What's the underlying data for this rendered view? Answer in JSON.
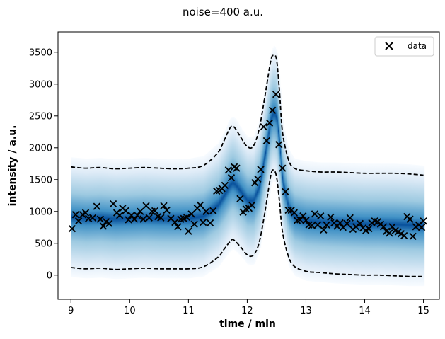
{
  "chart_data": {
    "type": "scatter",
    "title": "noise=400 a.u.",
    "xlabel": "time / min",
    "ylabel": "intensity / a.u.",
    "xlim": [
      8.78,
      15.27
    ],
    "ylim": [
      -380,
      3820
    ],
    "xticks": [
      9,
      10,
      11,
      12,
      13,
      14,
      15
    ],
    "yticks": [
      0,
      500,
      1000,
      1500,
      2000,
      2500,
      3000,
      3500
    ],
    "legend": {
      "position": "top-right",
      "entries": [
        "data"
      ]
    },
    "grid": false,
    "colors": {
      "data": "#000000",
      "band": "#08519c",
      "band_light": "#deebf7",
      "bounds": "#000000"
    },
    "series": [
      {
        "name": "data",
        "kind": "scatter",
        "marker": "x",
        "points": [
          [
            9.02,
            730
          ],
          [
            9.08,
            950
          ],
          [
            9.13,
            850
          ],
          [
            9.2,
            950
          ],
          [
            9.25,
            980
          ],
          [
            9.3,
            890
          ],
          [
            9.37,
            900
          ],
          [
            9.44,
            1080
          ],
          [
            9.5,
            880
          ],
          [
            9.55,
            770
          ],
          [
            9.6,
            840
          ],
          [
            9.65,
            810
          ],
          [
            9.72,
            1120
          ],
          [
            9.78,
            980
          ],
          [
            9.83,
            940
          ],
          [
            9.88,
            1050
          ],
          [
            9.93,
            1010
          ],
          [
            9.98,
            870
          ],
          [
            10.03,
            940
          ],
          [
            10.08,
            880
          ],
          [
            10.13,
            940
          ],
          [
            10.18,
            1000
          ],
          [
            10.23,
            880
          ],
          [
            10.28,
            1090
          ],
          [
            10.33,
            900
          ],
          [
            10.38,
            1000
          ],
          [
            10.43,
            1010
          ],
          [
            10.48,
            920
          ],
          [
            10.53,
            900
          ],
          [
            10.58,
            1090
          ],
          [
            10.63,
            1020
          ],
          [
            10.7,
            890
          ],
          [
            10.77,
            830
          ],
          [
            10.82,
            760
          ],
          [
            10.87,
            880
          ],
          [
            10.92,
            890
          ],
          [
            10.97,
            910
          ],
          [
            11.0,
            690
          ],
          [
            11.05,
            960
          ],
          [
            11.1,
            800
          ],
          [
            11.15,
            1050
          ],
          [
            11.2,
            1100
          ],
          [
            11.25,
            830
          ],
          [
            11.3,
            1000
          ],
          [
            11.37,
            820
          ],
          [
            11.42,
            1010
          ],
          [
            11.48,
            1320
          ],
          [
            11.53,
            1330
          ],
          [
            11.57,
            1360
          ],
          [
            11.62,
            1410
          ],
          [
            11.68,
            1650
          ],
          [
            11.73,
            1530
          ],
          [
            11.78,
            1700
          ],
          [
            11.82,
            1680
          ],
          [
            11.88,
            1200
          ],
          [
            11.93,
            990
          ],
          [
            11.98,
            1040
          ],
          [
            12.03,
            1050
          ],
          [
            12.08,
            1100
          ],
          [
            12.13,
            1450
          ],
          [
            12.18,
            1510
          ],
          [
            12.23,
            1660
          ],
          [
            12.28,
            2330
          ],
          [
            12.33,
            2110
          ],
          [
            12.38,
            2390
          ],
          [
            12.43,
            2590
          ],
          [
            12.49,
            2840
          ],
          [
            12.54,
            2050
          ],
          [
            12.6,
            1680
          ],
          [
            12.65,
            1310
          ],
          [
            12.7,
            1020
          ],
          [
            12.75,
            1020
          ],
          [
            12.8,
            980
          ],
          [
            12.85,
            860
          ],
          [
            12.9,
            870
          ],
          [
            12.95,
            930
          ],
          [
            13.0,
            860
          ],
          [
            13.05,
            790
          ],
          [
            13.1,
            780
          ],
          [
            13.15,
            960
          ],
          [
            13.2,
            790
          ],
          [
            13.25,
            930
          ],
          [
            13.3,
            710
          ],
          [
            13.35,
            790
          ],
          [
            13.42,
            910
          ],
          [
            13.48,
            820
          ],
          [
            13.53,
            770
          ],
          [
            13.58,
            820
          ],
          [
            13.63,
            750
          ],
          [
            13.7,
            810
          ],
          [
            13.75,
            900
          ],
          [
            13.8,
            720
          ],
          [
            13.85,
            760
          ],
          [
            13.92,
            810
          ],
          [
            13.97,
            740
          ],
          [
            14.02,
            700
          ],
          [
            14.07,
            730
          ],
          [
            14.12,
            820
          ],
          [
            14.17,
            850
          ],
          [
            14.22,
            840
          ],
          [
            14.27,
            800
          ],
          [
            14.32,
            760
          ],
          [
            14.37,
            690
          ],
          [
            14.42,
            660
          ],
          [
            14.47,
            760
          ],
          [
            14.52,
            700
          ],
          [
            14.57,
            680
          ],
          [
            14.62,
            650
          ],
          [
            14.67,
            620
          ],
          [
            14.72,
            920
          ],
          [
            14.77,
            880
          ],
          [
            14.82,
            610
          ],
          [
            14.87,
            760
          ],
          [
            14.92,
            790
          ],
          [
            14.97,
            750
          ],
          [
            15.0,
            850
          ]
        ]
      },
      {
        "kind": "band",
        "x": [
          9.0,
          9.25,
          9.5,
          9.75,
          10.0,
          10.25,
          10.5,
          10.75,
          11.0,
          11.25,
          11.5,
          11.6,
          11.7,
          11.75,
          11.8,
          11.9,
          12.0,
          12.1,
          12.2,
          12.3,
          12.4,
          12.45,
          12.5,
          12.55,
          12.6,
          12.7,
          12.8,
          13.0,
          13.25,
          13.5,
          13.75,
          14.0,
          14.25,
          14.5,
          14.75,
          15.0
        ],
        "median": [
          900,
          905,
          900,
          905,
          900,
          905,
          900,
          900,
          900,
          920,
          1000,
          1090,
          1160,
          1180,
          1150,
          1080,
          1000,
          1030,
          1250,
          1700,
          2200,
          2450,
          2400,
          2000,
          1500,
          1150,
          970,
          890,
          850,
          830,
          810,
          800,
          790,
          780,
          770,
          760
        ],
        "lower": [
          120,
          100,
          110,
          90,
          100,
          110,
          100,
          100,
          100,
          130,
          280,
          400,
          520,
          560,
          530,
          430,
          320,
          310,
          500,
          980,
          1560,
          1650,
          1540,
          1150,
          680,
          300,
          140,
          60,
          40,
          20,
          10,
          0,
          0,
          -10,
          -20,
          -20
        ],
        "upper": [
          1700,
          1680,
          1690,
          1670,
          1680,
          1690,
          1680,
          1670,
          1680,
          1720,
          1920,
          2100,
          2300,
          2340,
          2300,
          2150,
          2020,
          2020,
          2280,
          2800,
          3360,
          3450,
          3380,
          2880,
          2250,
          1820,
          1680,
          1640,
          1620,
          1620,
          1610,
          1600,
          1600,
          1600,
          1590,
          1570
        ]
      }
    ]
  }
}
